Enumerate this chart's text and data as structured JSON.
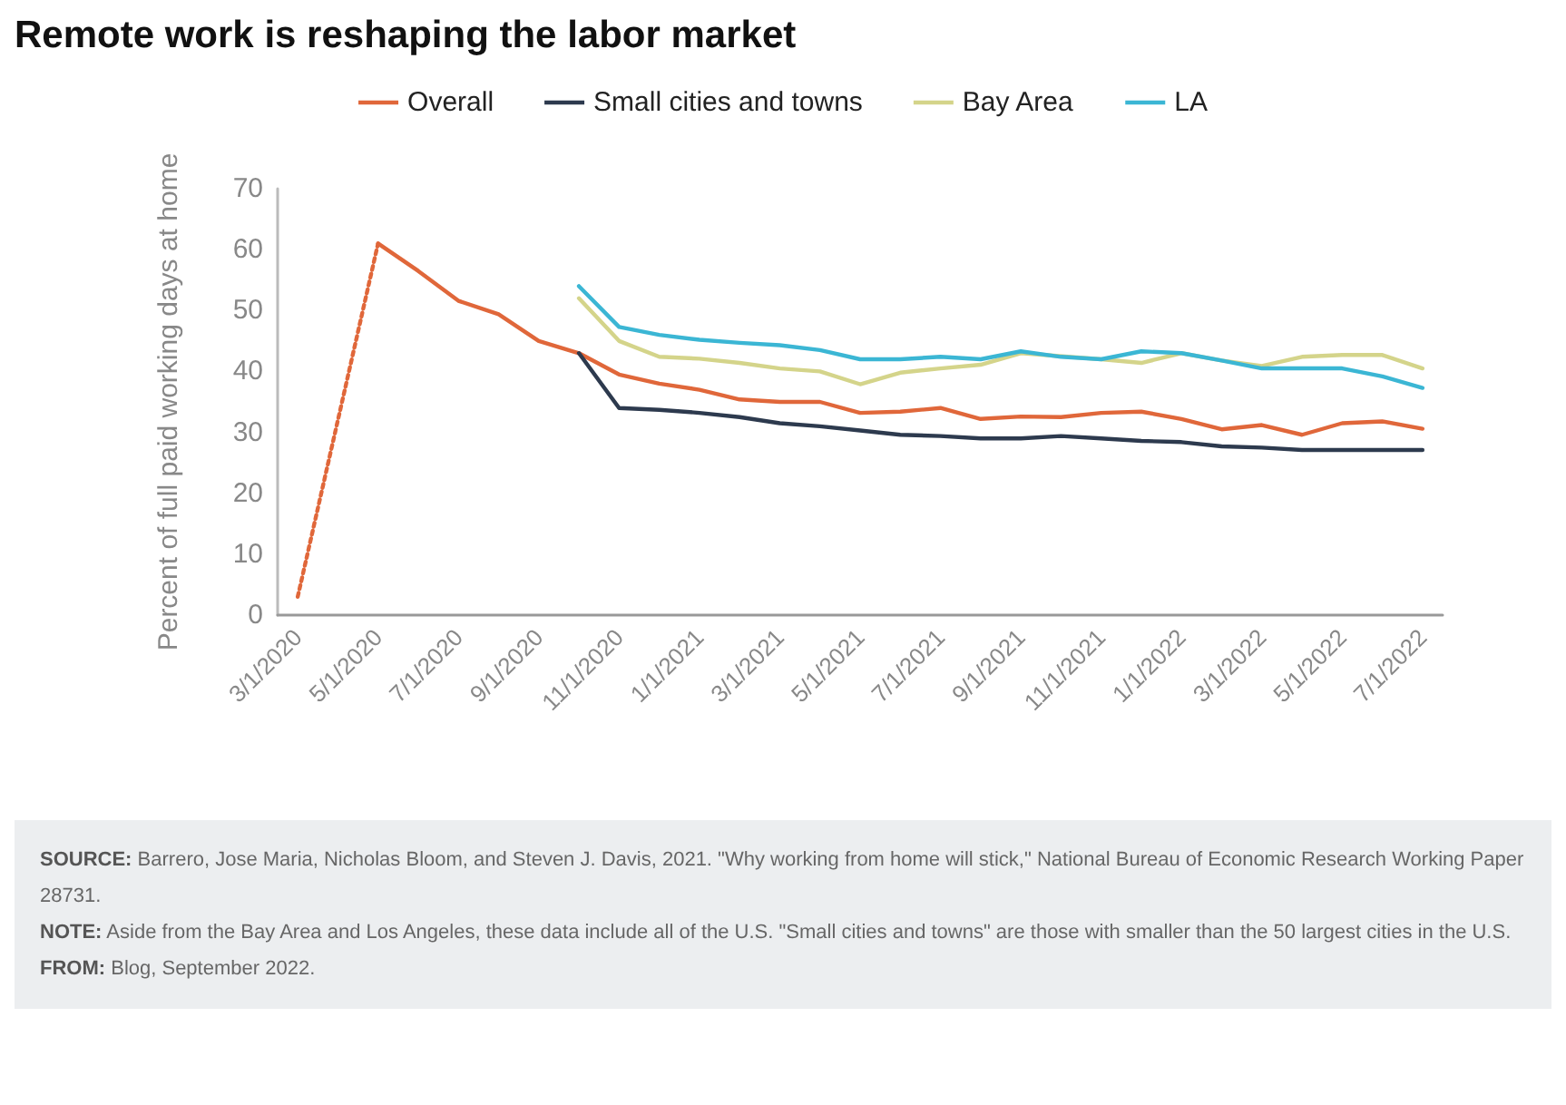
{
  "chart_data": {
    "type": "line",
    "title": "Remote work is reshaping the labor market",
    "ylabel": "Percent of full paid working days at home",
    "categories": [
      "3/1/2020",
      null,
      "5/1/2020",
      null,
      "7/1/2020",
      null,
      "9/1/2020",
      null,
      "11/1/2020",
      null,
      "1/1/2021",
      null,
      "3/1/2021",
      null,
      "5/1/2021",
      null,
      "7/1/2021",
      null,
      "9/1/2021",
      null,
      "11/1/2021",
      null,
      "1/1/2022",
      null,
      "3/1/2022",
      null,
      "5/1/2022",
      null,
      "7/1/2022"
    ],
    "ylim": [
      0,
      70
    ],
    "yticks": [
      0,
      10,
      20,
      30,
      40,
      50,
      60,
      70
    ],
    "grid": false,
    "legend": "top",
    "marker": "none",
    "line_style": "solid",
    "series": [
      {
        "color": "#e0673a",
        "line_style": "dotted",
        "values": [
          3,
          null,
          61,
          null,
          null,
          null,
          null,
          null,
          null,
          null,
          null,
          null,
          null,
          null,
          null,
          null,
          null,
          null,
          null,
          null,
          null,
          null,
          null,
          null,
          null,
          null,
          null,
          null,
          null
        ]
      },
      {
        "name": "Overall",
        "color": "#e0673a",
        "values": [
          null,
          null,
          61,
          56.5,
          51.6,
          49.4,
          45,
          43,
          39.5,
          38,
          37,
          35.4,
          35,
          35,
          33.2,
          33.4,
          34,
          32.2,
          32.6,
          32.5,
          33.2,
          33.4,
          32.2,
          30.5,
          31.2,
          29.6,
          31.5,
          31.8,
          30.6
        ]
      },
      {
        "name": "Small cities and towns",
        "color": "#2d3a4e",
        "values": [
          null,
          null,
          null,
          null,
          null,
          null,
          null,
          43,
          34,
          33.7,
          33.2,
          32.5,
          31.5,
          31,
          30.3,
          29.6,
          29.4,
          29,
          29,
          29.4,
          29,
          28.6,
          28.4,
          27.7,
          27.5,
          27.1,
          27.1,
          27.1,
          27.1
        ]
      },
      {
        "name": "Bay Area",
        "color": "#d4d48a",
        "values": [
          null,
          null,
          null,
          null,
          null,
          null,
          null,
          52,
          45,
          42.4,
          42.1,
          41.4,
          40.5,
          40,
          37.9,
          39.8,
          40.5,
          41.1,
          43,
          null,
          42,
          41.4,
          43,
          41.8,
          40.9,
          42.4,
          42.7,
          42.7,
          40.5
        ]
      },
      {
        "name": "LA",
        "color": "#3bb6d4",
        "values": [
          null,
          null,
          null,
          null,
          null,
          null,
          null,
          54,
          47.3,
          46,
          45.2,
          44.7,
          44.3,
          43.5,
          42,
          42,
          42.4,
          42,
          43.3,
          42.4,
          42,
          43.3,
          43,
          41.8,
          40.5,
          40.5,
          40.5,
          39.2,
          37.3
        ]
      }
    ],
    "annotations": [
      "SOURCE: Barrero, Jose Maria, Nicholas Bloom, and Steven J. Davis, 2021. \"Why working from home will stick,\" National Bureau of Economic Research Working Paper 28731.",
      "NOTE: Aside from the Bay Area and Los Angeles, these data include all of the U.S. \"Small cities and towns\" are those with smaller than the 50 largest cities in the U.S.",
      "FROM: Blog, September 2022."
    ]
  }
}
